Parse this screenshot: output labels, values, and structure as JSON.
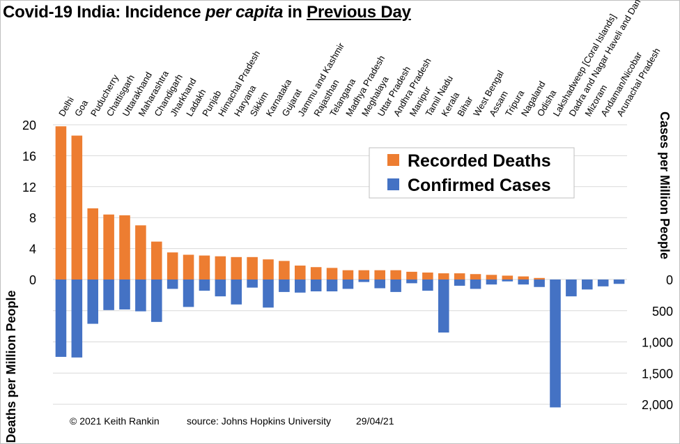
{
  "chart_data": {
    "type": "bar",
    "title": {
      "part1": "Covid-19 India: Incidence ",
      "part2": "per capita",
      "part3": " in ",
      "part4": "Previous Day"
    },
    "categories": [
      "Delhi",
      "Goa",
      "Puducherry",
      "Chattisgarh",
      "Uttarakhand",
      "Maharashtra",
      "Chandigarh",
      "Jharkhand",
      "Ladakh",
      "Punjab",
      "Himachal Pradesh",
      "Haryana",
      "Sikkim",
      "Karnataka",
      "Gujarat",
      "Jammu and Kashmir",
      "Rajasthan",
      "Telangana",
      "Madhya Pradesh",
      "Meghalaya",
      "Uttar Pradesh",
      "Andhra Pradesh",
      "Manipur",
      "Tamil Nadu",
      "Kerala",
      "Bihar",
      "West Bengal",
      "Assam",
      "Tripura",
      "Nagaland",
      "Odisha",
      "Lakshadweep [Coral Islands]",
      "Dadra and Nagar Haveli and Daman",
      "Mizoram",
      "Andaman/Nicobar",
      "Arunachal Pradesh"
    ],
    "series": [
      {
        "name": "Recorded Deaths",
        "color": "#ED7D31",
        "axis": "Deaths per Million People",
        "values": [
          19.8,
          18.6,
          9.2,
          8.4,
          8.3,
          7.0,
          4.9,
          3.5,
          3.2,
          3.1,
          3.0,
          2.9,
          2.9,
          2.6,
          2.4,
          1.8,
          1.6,
          1.5,
          1.2,
          1.2,
          1.2,
          1.2,
          1.0,
          0.9,
          0.8,
          0.8,
          0.7,
          0.6,
          0.5,
          0.4,
          0.2,
          0,
          0,
          0,
          0,
          0
        ]
      },
      {
        "name": "Confirmed Cases",
        "color": "#4472C4",
        "axis": "Cases per Million People",
        "values": [
          1240,
          1250,
          710,
          490,
          480,
          510,
          680,
          150,
          440,
          180,
          270,
          400,
          130,
          450,
          200,
          210,
          190,
          190,
          150,
          40,
          140,
          200,
          60,
          180,
          850,
          100,
          150,
          80,
          30,
          80,
          120,
          2050,
          270,
          160,
          110,
          70
        ]
      }
    ],
    "y_left": {
      "label": "Deaths per Million People",
      "ticks": [
        "0",
        "4",
        "8",
        "12",
        "16",
        "20"
      ],
      "ylim": [
        0,
        20
      ]
    },
    "y_right": {
      "label": "Cases per Million People",
      "ticks": [
        "0",
        "500",
        "1,000",
        "1,500",
        "2,000"
      ],
      "ylim": [
        0,
        2000
      ]
    },
    "grid": true,
    "legend": {
      "placement": "top-right"
    },
    "footer": {
      "copyright": "© 2021  Keith  Rankin",
      "source": "source:  Johns  Hopkins  University",
      "date": "29/04/21"
    }
  }
}
